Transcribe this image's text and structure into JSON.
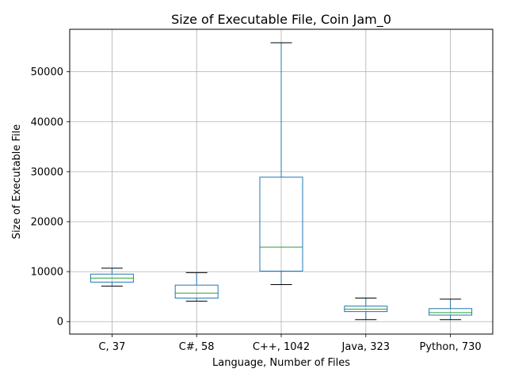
{
  "chart_data": {
    "type": "box",
    "title": "Size of Executable File, Coin Jam_0",
    "xlabel": "Language, Number of Files",
    "ylabel": "Size of Executable File",
    "ylim": [
      -2500,
      58500
    ],
    "yticks": [
      0,
      10000,
      20000,
      30000,
      40000,
      50000
    ],
    "grid": true,
    "colors": {
      "box": "#1f77b4",
      "median": "#2ca02c",
      "cap": "#000000",
      "grid": "#b0b0b0"
    },
    "categories": [
      "C, 37",
      "C#, 58",
      "C++, 1042",
      "Java, 323",
      "Python, 730"
    ],
    "boxes": [
      {
        "whislo": 7100,
        "q1": 7900,
        "med": 8700,
        "q3": 9500,
        "whishi": 10700
      },
      {
        "whislo": 4100,
        "q1": 4700,
        "med": 5700,
        "q3": 7300,
        "whishi": 9800
      },
      {
        "whislo": 7400,
        "q1": 10100,
        "med": 14900,
        "q3": 28900,
        "whishi": 55800
      },
      {
        "whislo": 400,
        "q1": 2000,
        "med": 2500,
        "q3": 3100,
        "whishi": 4700
      },
      {
        "whislo": 400,
        "q1": 1300,
        "med": 1800,
        "q3": 2600,
        "whishi": 4500
      }
    ]
  }
}
